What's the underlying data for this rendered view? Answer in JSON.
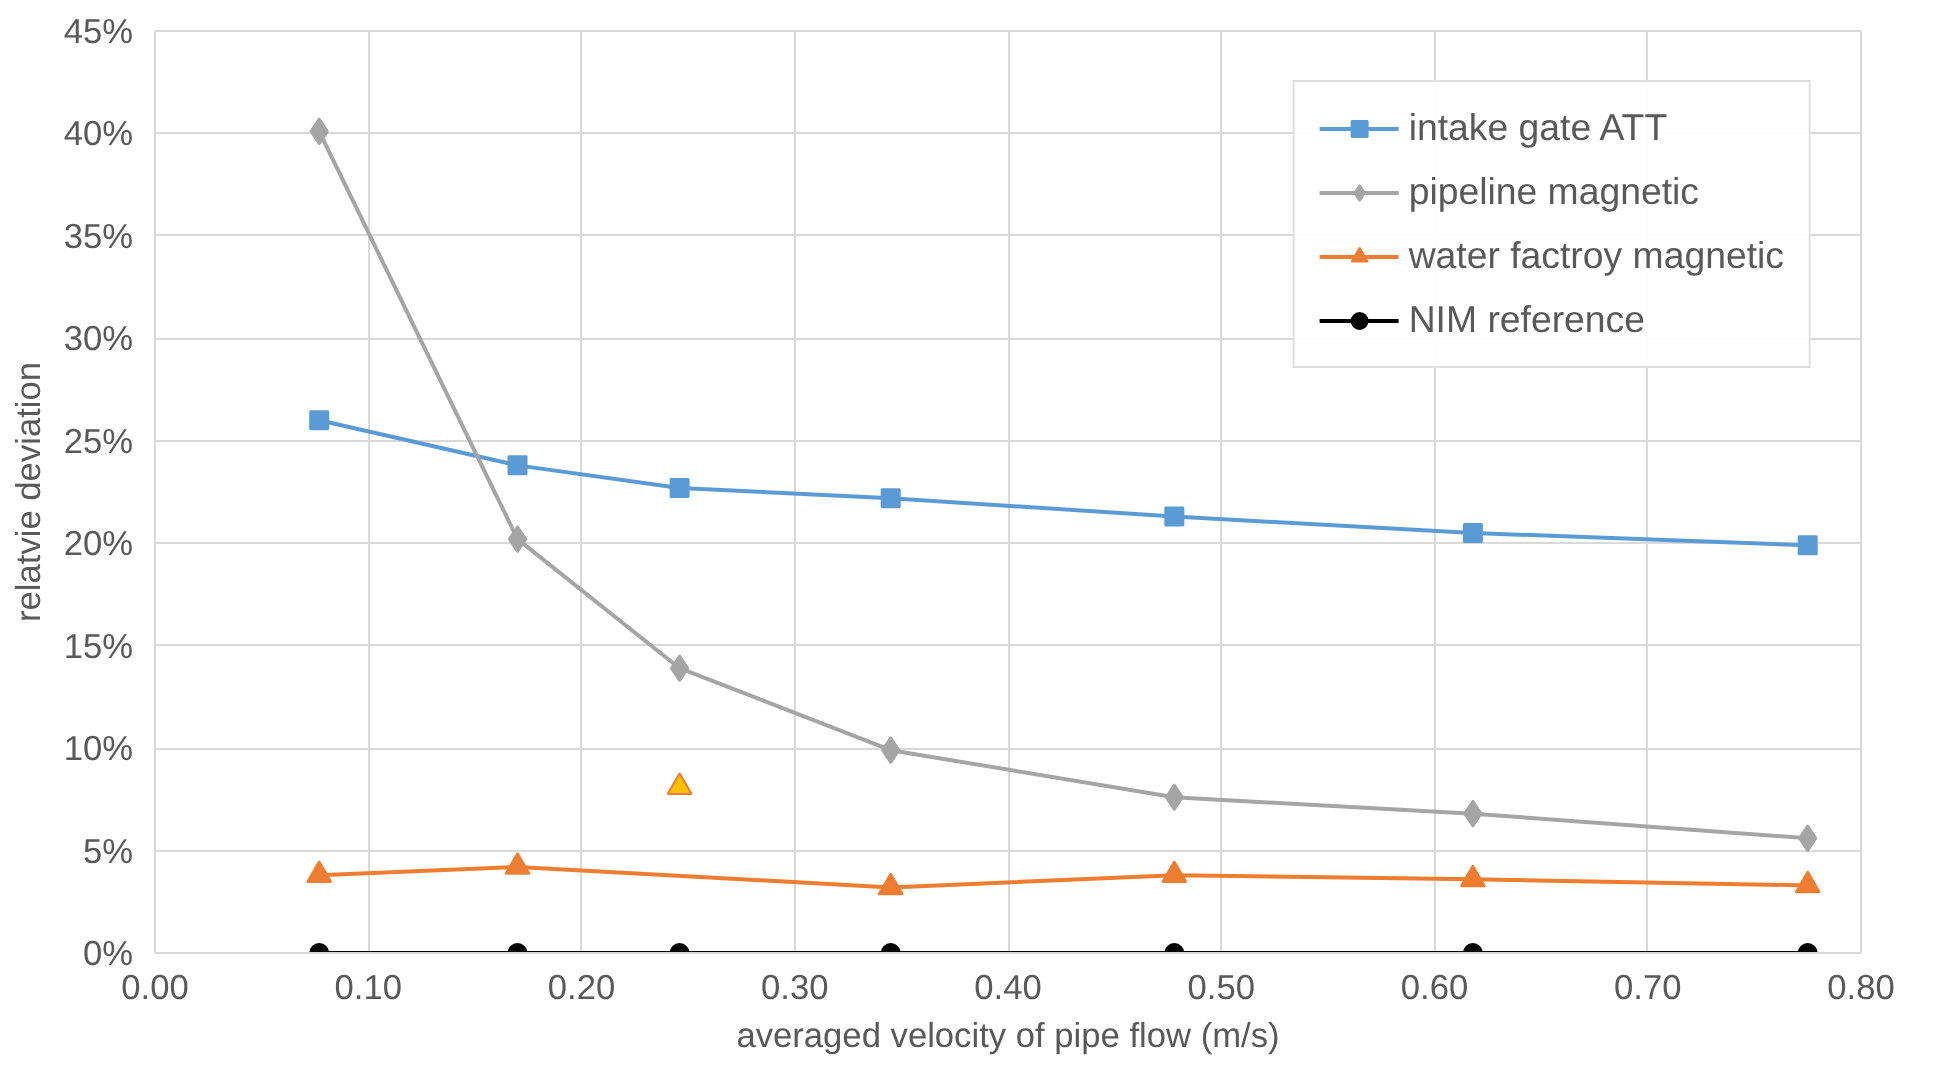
{
  "chart_data": {
    "type": "line",
    "xlabel": "averaged velocity of pipe flow (m/s)",
    "ylabel": "relatvie deviation",
    "x": [
      0.077,
      0.17,
      0.246,
      0.345,
      0.478,
      0.618,
      0.775
    ],
    "series": [
      {
        "name": "intake gate ATT",
        "color": "#5b9bd5",
        "marker": "square",
        "values": [
          26.0,
          23.8,
          22.7,
          22.2,
          21.3,
          20.5,
          19.9
        ]
      },
      {
        "name": "pipeline magnetic",
        "color": "#a5a5a5",
        "marker": "diamond",
        "values": [
          40.1,
          20.2,
          13.9,
          9.9,
          7.6,
          6.8,
          5.6
        ]
      },
      {
        "name": "water factroy magnetic",
        "color": "#ed7d31",
        "marker": "triangle",
        "x": [
          0.077,
          0.17,
          0.345,
          0.478,
          0.618,
          0.775
        ],
        "values": [
          3.8,
          4.2,
          3.2,
          3.8,
          3.6,
          3.3
        ]
      },
      {
        "type": "scatter",
        "color": "#ffc000",
        "marker": "triangle",
        "x": [
          0.246
        ],
        "values": [
          8.1
        ]
      },
      {
        "name": "NIM reference",
        "color": "#000000",
        "marker": "circle",
        "values": [
          0,
          0,
          0,
          0,
          0,
          0,
          0
        ]
      }
    ],
    "xlim": [
      0,
      0.8
    ],
    "xticks": [
      {
        "value": 0,
        "label": "0.00"
      },
      {
        "value": 0.1,
        "label": "0.10"
      },
      {
        "value": 0.2,
        "label": "0.20"
      },
      {
        "value": 0.3,
        "label": "0.30"
      },
      {
        "value": 0.4,
        "label": "0.40"
      },
      {
        "value": 0.5,
        "label": "0.50"
      },
      {
        "value": 0.6,
        "label": "0.60"
      },
      {
        "value": 0.7,
        "label": "0.70"
      },
      {
        "value": 0.8,
        "label": "0.80"
      }
    ],
    "ylim": [
      0,
      45
    ],
    "yticks": [
      {
        "value": 0,
        "label": "0%"
      },
      {
        "value": 5,
        "label": "5%"
      },
      {
        "value": 10,
        "label": "10%"
      },
      {
        "value": 15,
        "label": "15%"
      },
      {
        "value": 20,
        "label": "20%"
      },
      {
        "value": 25,
        "label": "25%"
      },
      {
        "value": 30,
        "label": "30%"
      },
      {
        "value": 35,
        "label": "35%"
      },
      {
        "value": 40,
        "label": "40%"
      },
      {
        "value": 45,
        "label": "45%"
      }
    ],
    "grid": true,
    "legend": "top right"
  }
}
